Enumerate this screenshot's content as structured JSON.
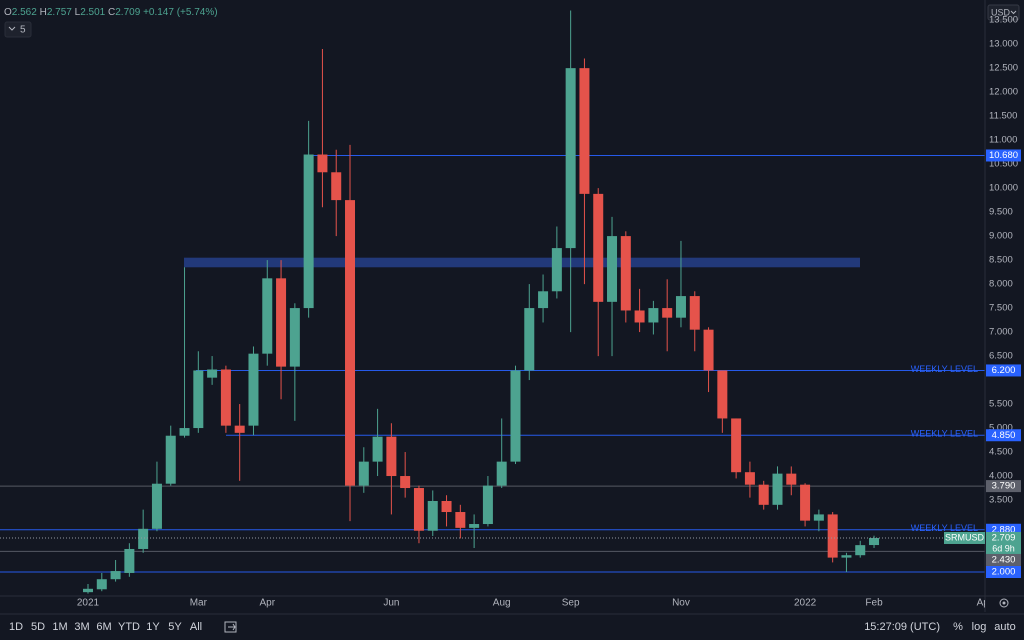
{
  "chart_data": {
    "type": "candlestick",
    "categories": [
      "2021",
      null,
      null,
      null,
      null,
      null,
      null,
      null,
      "Mar",
      null,
      null,
      null,
      null,
      "Apr",
      null,
      null,
      null,
      null,
      null,
      null,
      null,
      null,
      "Jun",
      null,
      null,
      null,
      null,
      null,
      null,
      null,
      "Aug",
      null,
      null,
      null,
      null,
      "Sep",
      null,
      null,
      null,
      null,
      null,
      null,
      null,
      "Nov",
      null,
      null,
      null,
      null,
      null,
      null,
      null,
      null,
      "2022",
      null,
      null,
      null,
      null,
      "Feb",
      null,
      null,
      null,
      null,
      null,
      null,
      null,
      "Apr"
    ],
    "open": [
      1.58,
      1.64,
      1.85,
      1.98,
      2.48,
      2.9,
      3.84,
      4.84,
      5.0,
      6.05,
      6.22,
      5.05,
      5.05,
      6.55,
      8.12,
      6.28,
      7.5,
      10.7,
      10.33,
      9.75,
      3.8,
      4.3,
      4.82,
      4.0,
      3.75,
      2.86,
      3.48,
      3.25,
      2.92,
      3.0,
      3.8,
      4.3,
      6.2,
      7.5,
      7.85,
      8.75,
      12.5,
      9.88,
      7.63,
      9.0,
      7.45,
      7.2,
      7.5,
      7.3,
      7.75,
      7.05,
      6.2,
      5.2,
      4.08,
      3.82,
      3.4,
      4.05,
      3.82,
      3.07,
      3.2,
      2.3,
      2.35,
      2.562,
      null,
      null,
      null,
      null,
      null,
      null,
      null,
      null
    ],
    "high": [
      1.75,
      1.98,
      2.25,
      2.6,
      3.3,
      4.3,
      5.05,
      8.35,
      6.6,
      6.5,
      6.3,
      5.5,
      6.7,
      8.5,
      8.5,
      7.6,
      11.4,
      12.9,
      10.8,
      10.9,
      4.6,
      5.4,
      5.1,
      4.5,
      3.8,
      3.7,
      3.6,
      3.4,
      3.2,
      4.0,
      5.2,
      6.3,
      8.0,
      8.2,
      9.2,
      13.7,
      12.7,
      10.0,
      9.4,
      9.1,
      7.9,
      7.65,
      8.1,
      8.9,
      7.85,
      7.1,
      6.2,
      5.2,
      4.3,
      3.9,
      4.2,
      4.2,
      3.85,
      3.3,
      3.25,
      2.4,
      2.65,
      2.757,
      null,
      null,
      null,
      null,
      null,
      null,
      null,
      null
    ],
    "low": [
      1.55,
      1.6,
      1.8,
      1.9,
      2.4,
      2.85,
      3.8,
      4.8,
      4.9,
      5.9,
      4.9,
      3.9,
      4.85,
      6.3,
      5.6,
      5.15,
      7.3,
      9.6,
      9.0,
      3.06,
      3.65,
      4.0,
      3.2,
      3.55,
      2.6,
      2.75,
      2.95,
      2.7,
      2.5,
      2.95,
      3.75,
      4.25,
      6.0,
      7.2,
      7.7,
      7.0,
      8.0,
      6.5,
      6.5,
      7.2,
      7.0,
      6.95,
      6.6,
      7.1,
      6.6,
      5.75,
      4.9,
      3.95,
      3.55,
      3.3,
      3.3,
      3.6,
      2.95,
      2.85,
      2.2,
      2.0,
      2.3,
      2.501,
      null,
      null,
      null,
      null,
      null,
      null,
      null,
      null
    ],
    "close": [
      1.65,
      1.85,
      2.02,
      2.48,
      2.9,
      3.84,
      4.84,
      5.0,
      6.2,
      6.22,
      5.05,
      4.9,
      6.55,
      8.12,
      6.28,
      7.5,
      10.7,
      10.33,
      9.75,
      3.8,
      4.3,
      4.82,
      4.0,
      3.75,
      2.86,
      3.48,
      3.25,
      2.92,
      3.0,
      3.8,
      4.3,
      6.2,
      7.5,
      7.85,
      8.75,
      12.5,
      9.88,
      7.63,
      9.0,
      7.45,
      7.2,
      7.5,
      7.3,
      7.75,
      7.05,
      6.2,
      5.2,
      4.08,
      3.82,
      3.4,
      4.05,
      3.82,
      3.07,
      3.2,
      2.3,
      2.35,
      2.56,
      2.709,
      null,
      null,
      null,
      null,
      null,
      null,
      null,
      null
    ],
    "up_color": "#4da390",
    "down_color": "#e5534b",
    "ylim": [
      1.5,
      13.92
    ],
    "yticks": [
      {
        "value": 13.5,
        "label": "13.500"
      },
      {
        "value": 13,
        "label": "13.000"
      },
      {
        "value": 12.5,
        "label": "12.500"
      },
      {
        "value": 12,
        "label": "12.000"
      },
      {
        "value": 11.5,
        "label": "11.500"
      },
      {
        "value": 11,
        "label": "11.000"
      },
      {
        "value": 10.5,
        "label": "10.500"
      },
      {
        "value": 10,
        "label": "10.000"
      },
      {
        "value": 9.5,
        "label": "9.500"
      },
      {
        "value": 9,
        "label": "9.000"
      },
      {
        "value": 8.5,
        "label": "8.500"
      },
      {
        "value": 8,
        "label": "8.000"
      },
      {
        "value": 7.5,
        "label": "7.500"
      },
      {
        "value": 7,
        "label": "7.000"
      },
      {
        "value": 6.5,
        "label": "6.500"
      },
      {
        "value": 5.5,
        "label": "5.500"
      },
      {
        "value": 5,
        "label": "5.000"
      },
      {
        "value": 4.5,
        "label": "4.500"
      },
      {
        "value": 4,
        "label": "4.000"
      },
      {
        "value": 3.5,
        "label": "3.500"
      }
    ],
    "levels": [
      {
        "value": 10.68,
        "label": "10.680",
        "color": "#2962ff"
      },
      {
        "value": 6.2,
        "label": "6.200",
        "color": "#2962ff",
        "annotation": "WEEKLY LEVEL"
      },
      {
        "value": 4.85,
        "label": "4.850",
        "color": "#2962ff",
        "annotation": "WEEKLY LEVEL"
      },
      {
        "value": 3.79,
        "label": "3.790",
        "color": "#5d606b"
      },
      {
        "value": 2.88,
        "label": "2.880",
        "color": "#2962ff",
        "annotation": "WEEKLY LEVEL"
      },
      {
        "value": 2.43,
        "label": "2.430",
        "color": "#5d606b"
      },
      {
        "value": 2.0,
        "label": "2.000",
        "color": "#2962ff"
      }
    ],
    "zones": [
      {
        "from": 8.35,
        "to": 8.55,
        "color": "#26408a"
      }
    ],
    "current": {
      "symbol": "SRMUSD",
      "countdown": "6d 9h"
    },
    "currency": "USD"
  },
  "header": {
    "o": "O",
    "open": 2.562,
    "h": "H",
    "high": 2.757,
    "l": "L",
    "low": 2.501,
    "c": "C",
    "close": 2.709,
    "change": "+0.147 (+5.74%)",
    "indicators": 5
  },
  "toolbar": {
    "ranges": [
      "1D",
      "5D",
      "1M",
      "3M",
      "6M",
      "YTD",
      "1Y",
      "5Y",
      "All"
    ],
    "clock": "15:27:09 (UTC)",
    "options": [
      "%",
      "log",
      "auto"
    ]
  }
}
